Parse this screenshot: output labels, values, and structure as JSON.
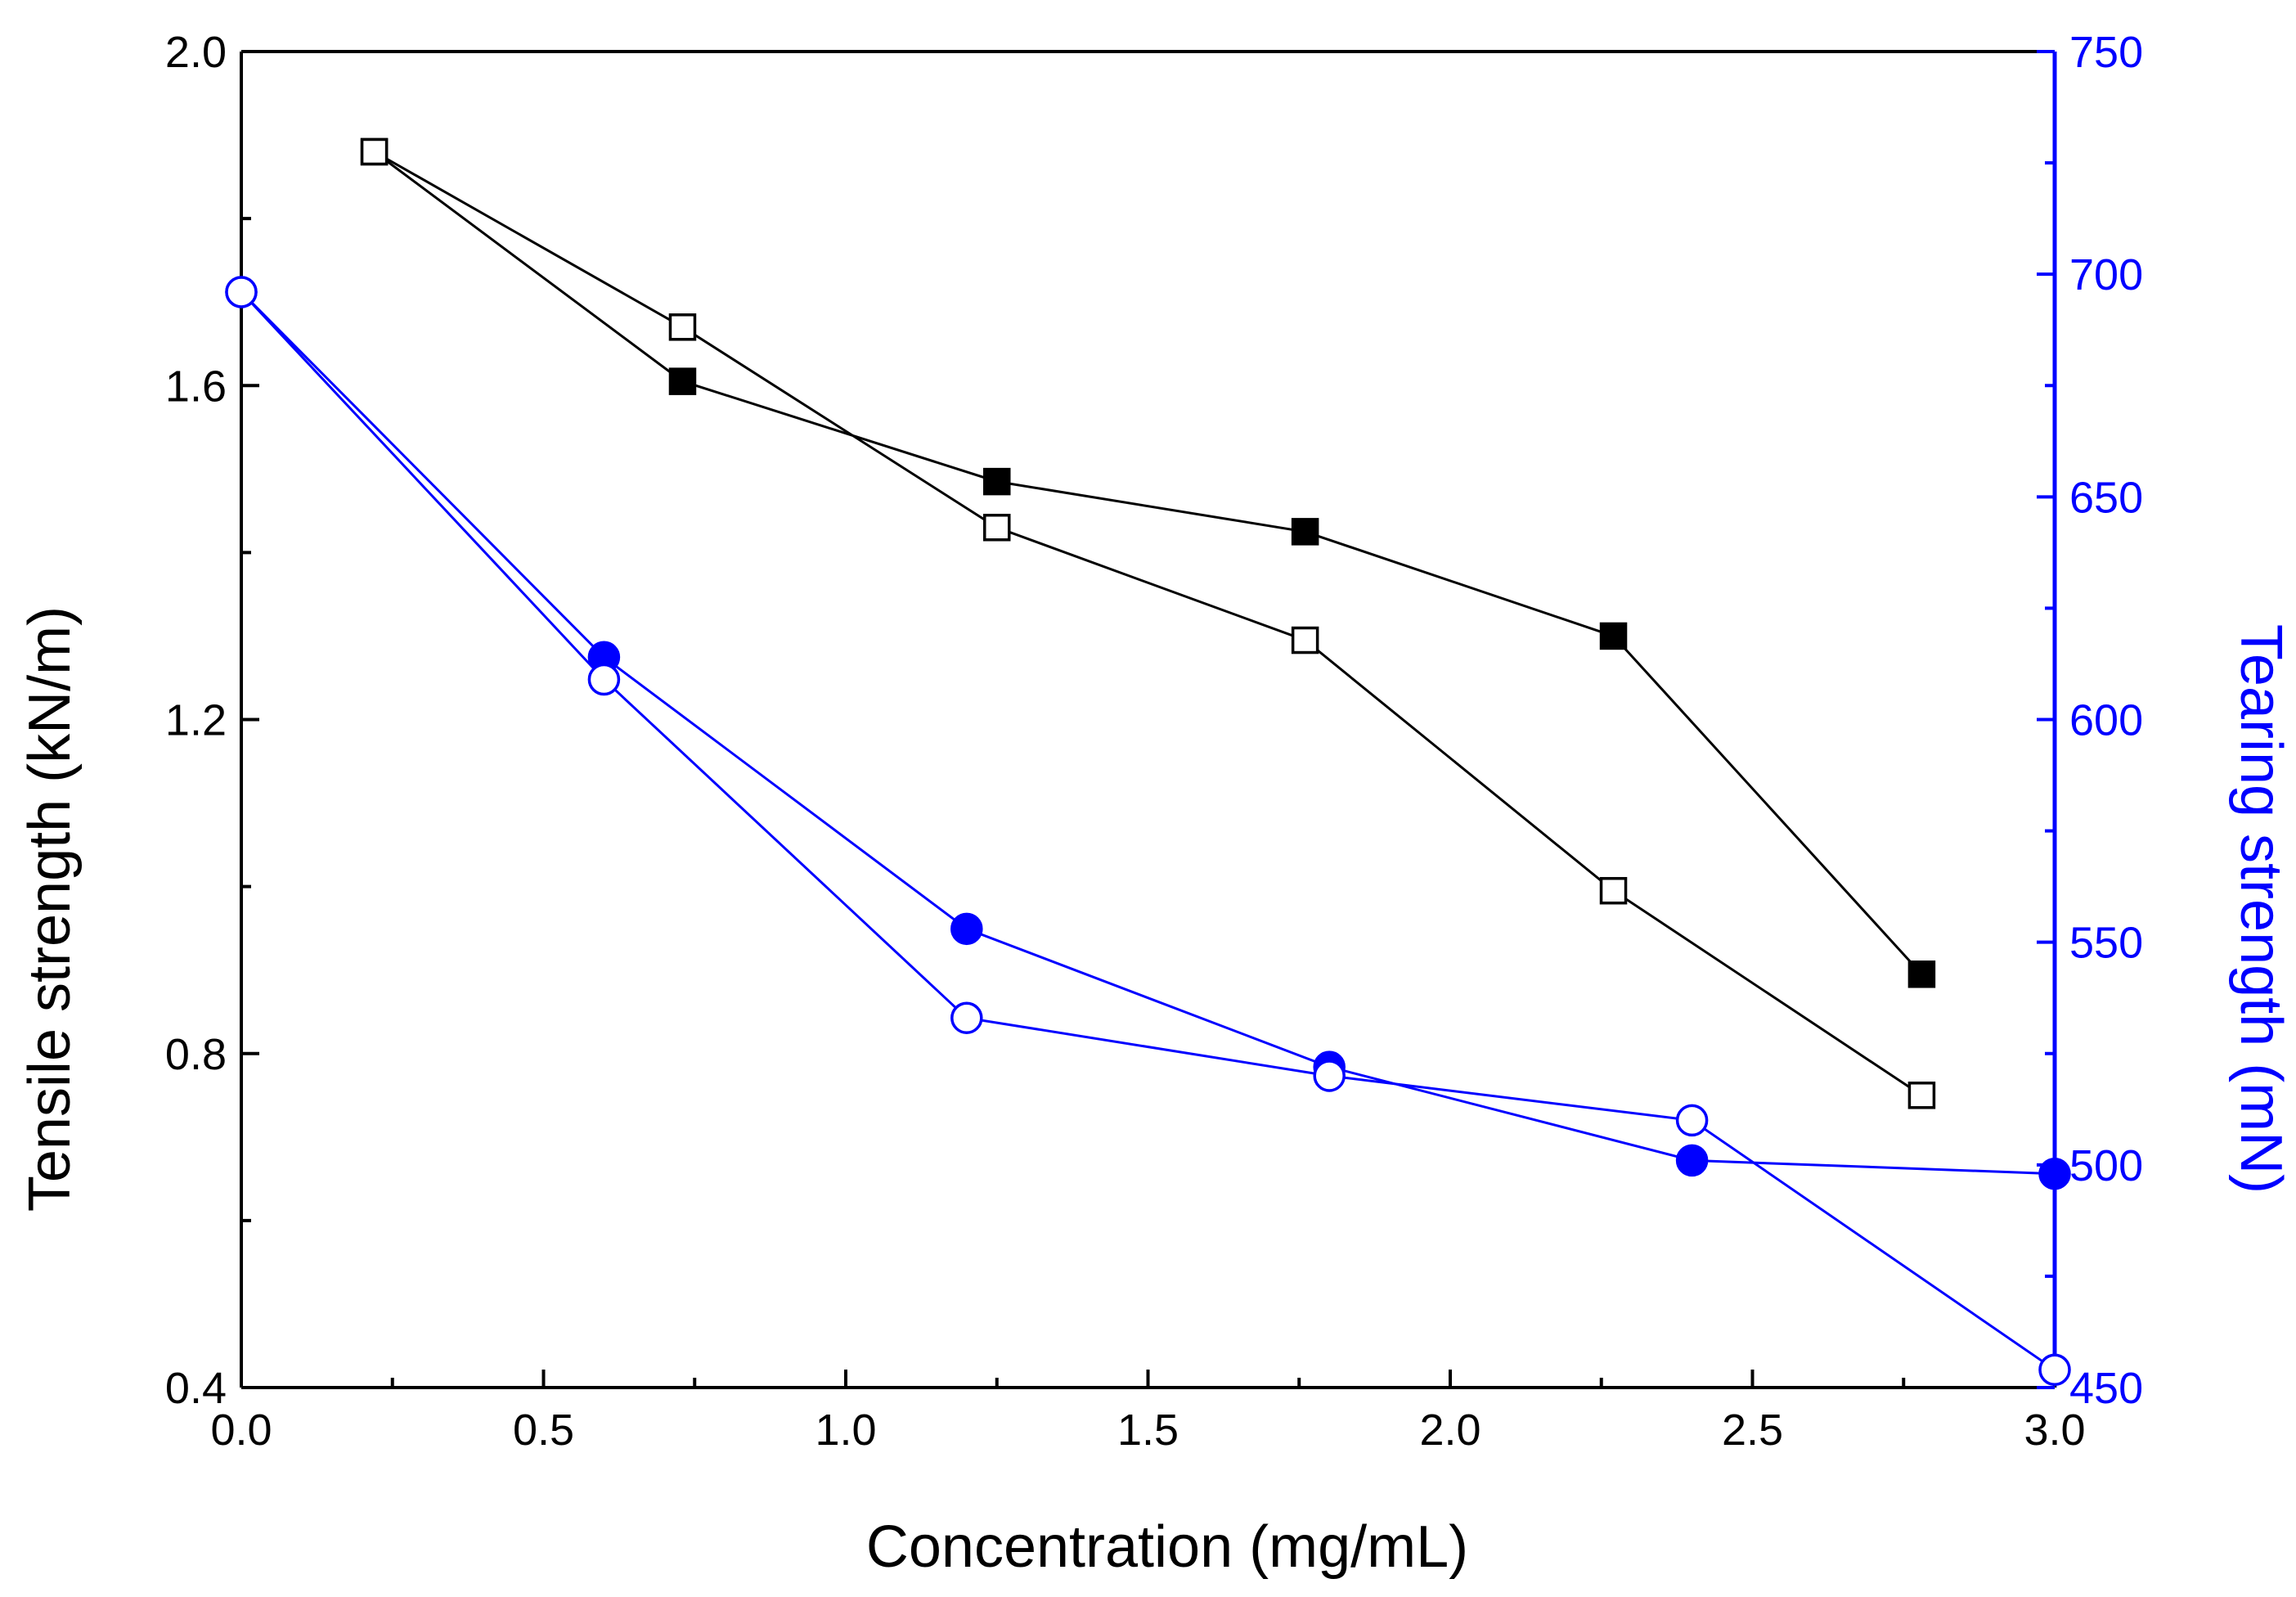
{
  "chart_data": {
    "type": "line",
    "title": "",
    "xlabel": "Concentration (mg/mL)",
    "ylabel_left": "Tensile strength (kN/m)",
    "ylabel_right": "Tearing strength (mN)",
    "xlim": [
      0.0,
      3.0
    ],
    "ylim_left": [
      0.4,
      2.0
    ],
    "ylim_right": [
      450,
      750
    ],
    "x_ticks": [
      "0.0",
      "0.5",
      "1.0",
      "1.5",
      "2.0",
      "2.5",
      "3.0"
    ],
    "y_left_ticks": [
      "0.4",
      "0.8",
      "1.2",
      "1.6",
      "2.0"
    ],
    "y_right_ticks": [
      "450",
      "500",
      "550",
      "600",
      "650",
      "700",
      "750"
    ],
    "grid": false,
    "legend": "none",
    "colors": {
      "black": "#000000",
      "blue": "#0000ff"
    },
    "series": [
      {
        "name": "Tensile strength (filled squares)",
        "axis": "left",
        "color": "#000000",
        "marker": "square",
        "filled": true,
        "x": [
          0.22,
          0.73,
          1.25,
          1.76,
          2.27,
          2.78
        ],
        "y": [
          1.88,
          1.605,
          1.485,
          1.425,
          1.3,
          0.895
        ]
      },
      {
        "name": "Tensile strength (open squares)",
        "axis": "left",
        "color": "#000000",
        "marker": "square",
        "filled": false,
        "x": [
          0.22,
          0.73,
          1.25,
          1.76,
          2.27,
          2.78
        ],
        "y": [
          1.88,
          1.67,
          1.43,
          1.295,
          0.995,
          0.75
        ]
      },
      {
        "name": "Tearing strength (filled circles)",
        "axis": "right",
        "color": "#0000ff",
        "marker": "circle",
        "filled": true,
        "x": [
          0.0,
          0.6,
          1.2,
          1.8,
          2.4,
          3.0
        ],
        "y": [
          696,
          614,
          553,
          522,
          501,
          498
        ]
      },
      {
        "name": "Tearing strength (open circles)",
        "axis": "right",
        "color": "#0000ff",
        "marker": "circle",
        "filled": false,
        "x": [
          0.0,
          0.6,
          1.2,
          1.8,
          2.4,
          3.0
        ],
        "y": [
          696,
          609,
          533,
          520,
          510,
          454
        ]
      }
    ]
  }
}
